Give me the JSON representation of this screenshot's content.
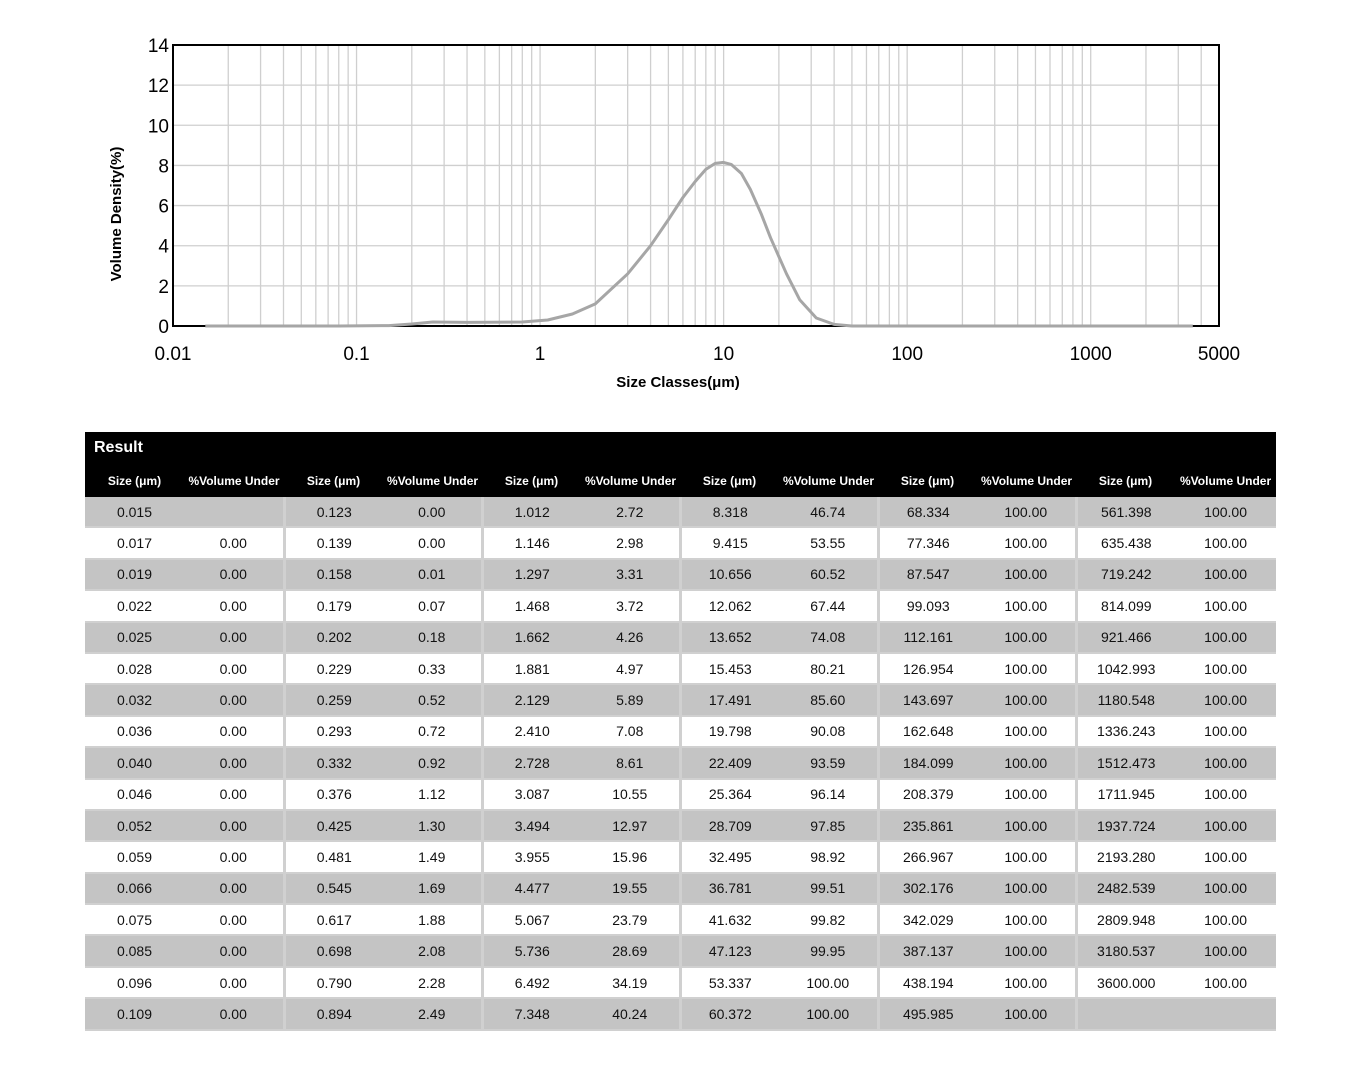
{
  "chart_data": {
    "type": "line",
    "ylabel": "Volume Density(%)",
    "xlabel": "Size Classes(μm)",
    "x_scale": "log",
    "xlim": [
      0.01,
      5000
    ],
    "ylim": [
      0,
      14
    ],
    "x_ticks": [
      "0.01",
      "0.1",
      "1",
      "10",
      "100",
      "1000",
      "5000"
    ],
    "y_ticks": [
      "0",
      "2",
      "4",
      "6",
      "8",
      "10",
      "12",
      "14"
    ],
    "grid": true,
    "series": [
      {
        "color": "#a6a6a6",
        "x": [
          0.015,
          0.08,
          0.15,
          0.2,
          0.26,
          0.4,
          0.8,
          1.1,
          1.5,
          2.0,
          3.0,
          4.0,
          5.0,
          6.0,
          7.0,
          8.0,
          9.0,
          10.0,
          11.0,
          12.5,
          14.0,
          16.0,
          18.0,
          22.0,
          26.0,
          32.0,
          40.0,
          50.0,
          70.0,
          100.0,
          1000.0,
          3600.0
        ],
        "y": [
          0.0,
          0.0,
          0.02,
          0.1,
          0.2,
          0.18,
          0.2,
          0.3,
          0.6,
          1.1,
          2.6,
          4.0,
          5.3,
          6.4,
          7.2,
          7.8,
          8.1,
          8.15,
          8.05,
          7.6,
          6.8,
          5.6,
          4.4,
          2.6,
          1.3,
          0.4,
          0.08,
          0.0,
          0.0,
          0.0,
          0.0,
          0.0
        ]
      }
    ]
  },
  "table": {
    "title": "Result",
    "size_header": "Size (μm)",
    "volume_header": "%Volume Under",
    "groups": [
      {
        "size": [
          "0.015",
          "0.017",
          "0.019",
          "0.022",
          "0.025",
          "0.028",
          "0.032",
          "0.036",
          "0.040",
          "0.046",
          "0.052",
          "0.059",
          "0.066",
          "0.075",
          "0.085",
          "0.096",
          "0.109"
        ],
        "volume": [
          "",
          "0.00",
          "0.00",
          "0.00",
          "0.00",
          "0.00",
          "0.00",
          "0.00",
          "0.00",
          "0.00",
          "0.00",
          "0.00",
          "0.00",
          "0.00",
          "0.00",
          "0.00",
          "0.00"
        ]
      },
      {
        "size": [
          "0.123",
          "0.139",
          "0.158",
          "0.179",
          "0.202",
          "0.229",
          "0.259",
          "0.293",
          "0.332",
          "0.376",
          "0.425",
          "0.481",
          "0.545",
          "0.617",
          "0.698",
          "0.790",
          "0.894"
        ],
        "volume": [
          "0.00",
          "0.00",
          "0.01",
          "0.07",
          "0.18",
          "0.33",
          "0.52",
          "0.72",
          "0.92",
          "1.12",
          "1.30",
          "1.49",
          "1.69",
          "1.88",
          "2.08",
          "2.28",
          "2.49"
        ]
      },
      {
        "size": [
          "1.012",
          "1.146",
          "1.297",
          "1.468",
          "1.662",
          "1.881",
          "2.129",
          "2.410",
          "2.728",
          "3.087",
          "3.494",
          "3.955",
          "4.477",
          "5.067",
          "5.736",
          "6.492",
          "7.348"
        ],
        "volume": [
          "2.72",
          "2.98",
          "3.31",
          "3.72",
          "4.26",
          "4.97",
          "5.89",
          "7.08",
          "8.61",
          "10.55",
          "12.97",
          "15.96",
          "19.55",
          "23.79",
          "28.69",
          "34.19",
          "40.24"
        ]
      },
      {
        "size": [
          "8.318",
          "9.415",
          "10.656",
          "12.062",
          "13.652",
          "15.453",
          "17.491",
          "19.798",
          "22.409",
          "25.364",
          "28.709",
          "32.495",
          "36.781",
          "41.632",
          "47.123",
          "53.337",
          "60.372"
        ],
        "volume": [
          "46.74",
          "53.55",
          "60.52",
          "67.44",
          "74.08",
          "80.21",
          "85.60",
          "90.08",
          "93.59",
          "96.14",
          "97.85",
          "98.92",
          "99.51",
          "99.82",
          "99.95",
          "100.00",
          "100.00"
        ]
      },
      {
        "size": [
          "68.334",
          "77.346",
          "87.547",
          "99.093",
          "112.161",
          "126.954",
          "143.697",
          "162.648",
          "184.099",
          "208.379",
          "235.861",
          "266.967",
          "302.176",
          "342.029",
          "387.137",
          "438.194",
          "495.985"
        ],
        "volume": [
          "100.00",
          "100.00",
          "100.00",
          "100.00",
          "100.00",
          "100.00",
          "100.00",
          "100.00",
          "100.00",
          "100.00",
          "100.00",
          "100.00",
          "100.00",
          "100.00",
          "100.00",
          "100.00",
          "100.00"
        ]
      },
      {
        "size": [
          "561.398",
          "635.438",
          "719.242",
          "814.099",
          "921.466",
          "1042.993",
          "1180.548",
          "1336.243",
          "1512.473",
          "1711.945",
          "1937.724",
          "2193.280",
          "2482.539",
          "2809.948",
          "3180.537",
          "3600.000",
          ""
        ],
        "volume": [
          "100.00",
          "100.00",
          "100.00",
          "100.00",
          "100.00",
          "100.00",
          "100.00",
          "100.00",
          "100.00",
          "100.00",
          "100.00",
          "100.00",
          "100.00",
          "100.00",
          "100.00",
          "100.00",
          ""
        ]
      }
    ]
  }
}
